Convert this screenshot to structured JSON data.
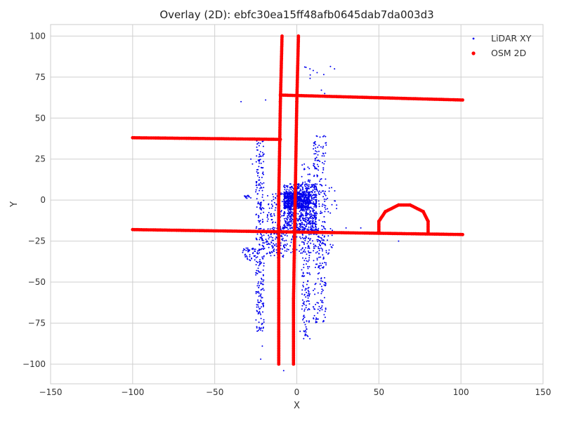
{
  "chart_data": {
    "type": "scatter",
    "title": "Overlay (2D): ebfc30ea15ff48afb0645dab7da003d3",
    "xlabel": "X",
    "ylabel": "Y",
    "xlim": [
      -150,
      150
    ],
    "ylim": [
      -112,
      107
    ],
    "xticks": [
      -150,
      -100,
      -50,
      0,
      50,
      100,
      150
    ],
    "xtick_labels": [
      "−150",
      "−100",
      "−50",
      "0",
      "50",
      "100",
      "150"
    ],
    "yticks": [
      -100,
      -75,
      -50,
      -25,
      0,
      25,
      50,
      75,
      100
    ],
    "ytick_labels": [
      "−100",
      "−75",
      "−50",
      "−25",
      "0",
      "25",
      "50",
      "75",
      "100"
    ],
    "grid": true,
    "legend_position": "top-right",
    "series": [
      {
        "name": "LiDAR XY",
        "color": "#0000ee",
        "marker_size": 1,
        "clusters": [
          {
            "x": [
              -25,
              -20
            ],
            "y": [
              -80,
              38
            ],
            "n": 260
          },
          {
            "x": [
              -18,
              -7
            ],
            "y": [
              -35,
              5
            ],
            "n": 160
          },
          {
            "x": [
              -8,
              12
            ],
            "y": [
              -20,
              10
            ],
            "n": 700
          },
          {
            "x": [
              -8,
              8
            ],
            "y": [
              -5,
              5
            ],
            "n": 500
          },
          {
            "x": [
              3,
              8
            ],
            "y": [
              -85,
              22
            ],
            "n": 180
          },
          {
            "x": [
              10,
              18
            ],
            "y": [
              -75,
              40
            ],
            "n": 260
          },
          {
            "x": [
              -22,
              22
            ],
            "y": [
              -33,
              -17
            ],
            "n": 160
          },
          {
            "x": [
              -33,
              -25
            ],
            "y": [
              -37,
              -29
            ],
            "n": 40
          },
          {
            "x": [
              -32,
              -28
            ],
            "y": [
              1,
              3
            ],
            "n": 14
          },
          {
            "x": [
              17,
              25
            ],
            "y": [
              -11,
              9
            ],
            "n": 14
          },
          {
            "x": [
              3,
              24
            ],
            "y": [
              65,
              82
            ],
            "n": 8
          }
        ],
        "points": [
          [
            -34,
            60
          ],
          [
            -19,
            61
          ],
          [
            8,
            80
          ],
          [
            10,
            79
          ],
          [
            23,
            80
          ],
          [
            17,
            65
          ],
          [
            -21,
            -89
          ],
          [
            -22,
            -97
          ],
          [
            -8,
            -104
          ],
          [
            2,
            -80
          ],
          [
            39,
            -17
          ],
          [
            62,
            -25
          ],
          [
            30,
            -17
          ],
          [
            -28,
            25
          ],
          [
            -27,
            22
          ]
        ]
      },
      {
        "name": "OSM 2D",
        "color": "#ff0000",
        "marker_size": 2.4,
        "paths": [
          [
            [
              -9,
              100
            ],
            [
              -10,
              60
            ],
            [
              -11,
              0
            ],
            [
              -11,
              -60
            ],
            [
              -11,
              -100
            ]
          ],
          [
            [
              1,
              100
            ],
            [
              0,
              60
            ],
            [
              -1,
              0
            ],
            [
              -2,
              -60
            ],
            [
              -2,
              -100
            ]
          ],
          [
            [
              -100,
              38
            ],
            [
              -10,
              37
            ]
          ],
          [
            [
              -10,
              64
            ],
            [
              101,
              61
            ]
          ],
          [
            [
              -100,
              -18
            ],
            [
              101,
              -21
            ]
          ],
          [
            [
              50,
              -20
            ],
            [
              50,
              -13
            ],
            [
              54,
              -7
            ],
            [
              62,
              -3
            ],
            [
              69,
              -3
            ],
            [
              77,
              -7
            ],
            [
              80,
              -13
            ],
            [
              80,
              -20
            ]
          ]
        ]
      }
    ]
  }
}
